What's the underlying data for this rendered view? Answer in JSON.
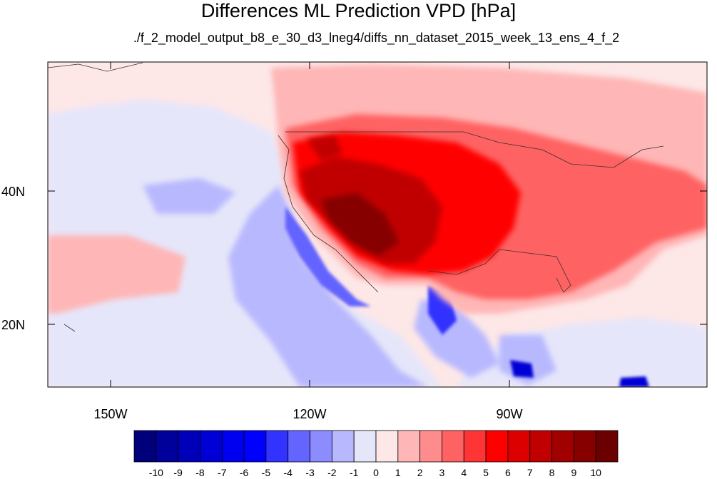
{
  "title": "Differences ML Prediction VPD [hPa]",
  "subtitle": "./f_2_model_output_b8_e_30_d3_lneg4/diffs_nn_dataset_2015_week_13_ens_4_f_2",
  "map": {
    "projection": "cylindrical equidistant",
    "lat_labels": [
      "40N",
      "20N"
    ],
    "lon_labels": [
      "150W",
      "120W",
      "90W"
    ],
    "background_color": "#fde7e7"
  },
  "colorbar": {
    "labels": [
      "-10",
      "-9",
      "-8",
      "-7",
      "-6",
      "-5",
      "-4",
      "-3",
      "-2",
      "-1",
      "0",
      "1",
      "2",
      "3",
      "4",
      "5",
      "6",
      "7",
      "8",
      "9",
      "10"
    ],
    "colors": [
      "#00007a",
      "#00009a",
      "#0000b8",
      "#0000d6",
      "#0000f0",
      "#0000ff",
      "#3333ff",
      "#6464ff",
      "#8c8cff",
      "#b8b8ff",
      "#e6e6fa",
      "#fde7e7",
      "#ffb6b6",
      "#ff8c8c",
      "#ff6262",
      "#ff3535",
      "#ff0000",
      "#dd0000",
      "#c00000",
      "#a00000",
      "#860000",
      "#6a0000"
    ]
  }
}
